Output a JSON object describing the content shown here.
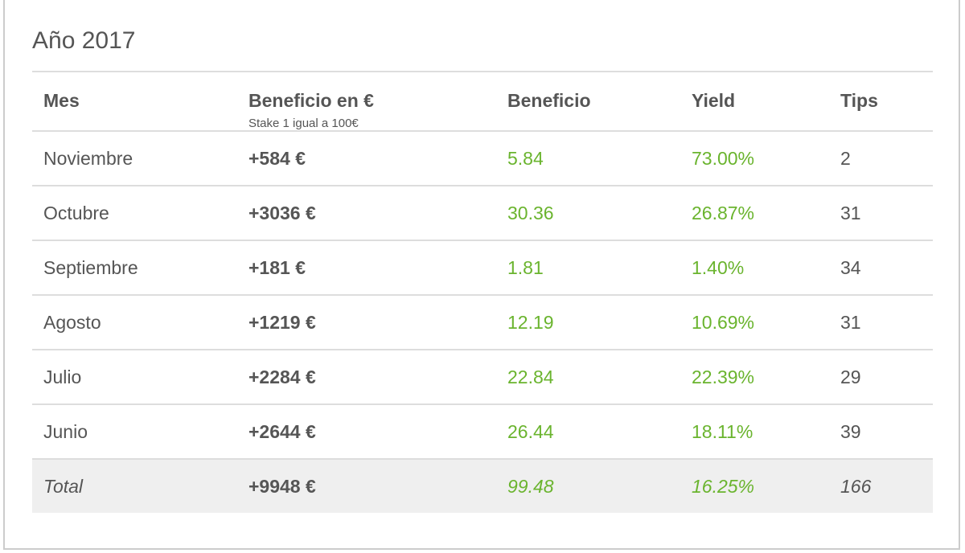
{
  "title": "Año 2017",
  "table": {
    "header": [
      "Mes",
      "Beneficio en €",
      "Beneficio",
      "Yield",
      "Tips"
    ],
    "header_note": "Stake 1 igual a 100€",
    "rows": [
      [
        "Noviembre",
        "+584 €",
        "5.84",
        "73.00%",
        "2"
      ],
      [
        "Octubre",
        "+3036 €",
        "30.36",
        "26.87%",
        "31"
      ],
      [
        "Septiembre",
        "+181 €",
        "1.81",
        "1.40%",
        "34"
      ],
      [
        "Agosto",
        "+1219 €",
        "12.19",
        "10.69%",
        "31"
      ],
      [
        "Julio",
        "+2284 €",
        "22.84",
        "22.39%",
        "29"
      ],
      [
        "Junio",
        "+2644 €",
        "26.44",
        "18.11%",
        "39"
      ]
    ],
    "total": [
      "Total",
      "+9948 €",
      "99.48",
      "16.25%",
      "166"
    ]
  }
}
